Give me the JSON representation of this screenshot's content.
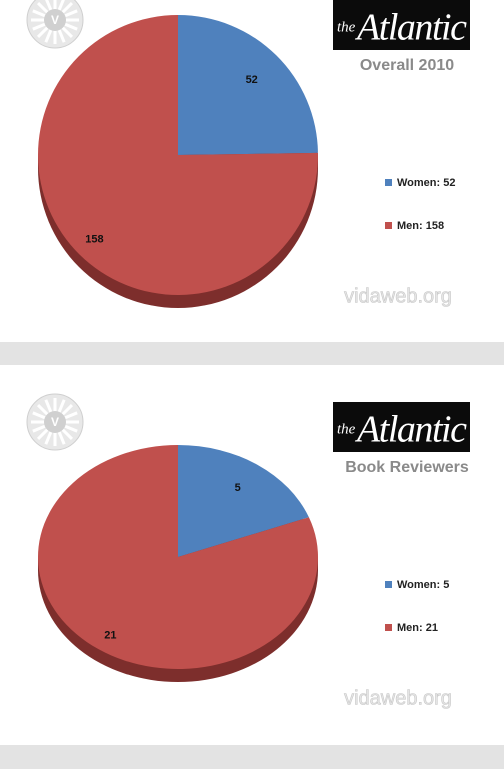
{
  "brand": {
    "prefix": "the",
    "name": "Atlantic"
  },
  "watermark": "vidaweb.org",
  "badge": "V",
  "chart_data": [
    {
      "type": "pie",
      "title": "Overall 2010",
      "categories": [
        "Women: 52",
        "Men: 158"
      ],
      "values": [
        52,
        158
      ],
      "colors": [
        "#4f81bd",
        "#c0504d"
      ],
      "legend": "right"
    },
    {
      "type": "pie",
      "title": "Book Reviewers",
      "categories": [
        "Women: 5",
        "Men: 21"
      ],
      "values": [
        5,
        21
      ],
      "colors": [
        "#4f81bd",
        "#c0504d"
      ],
      "legend": "right"
    }
  ]
}
